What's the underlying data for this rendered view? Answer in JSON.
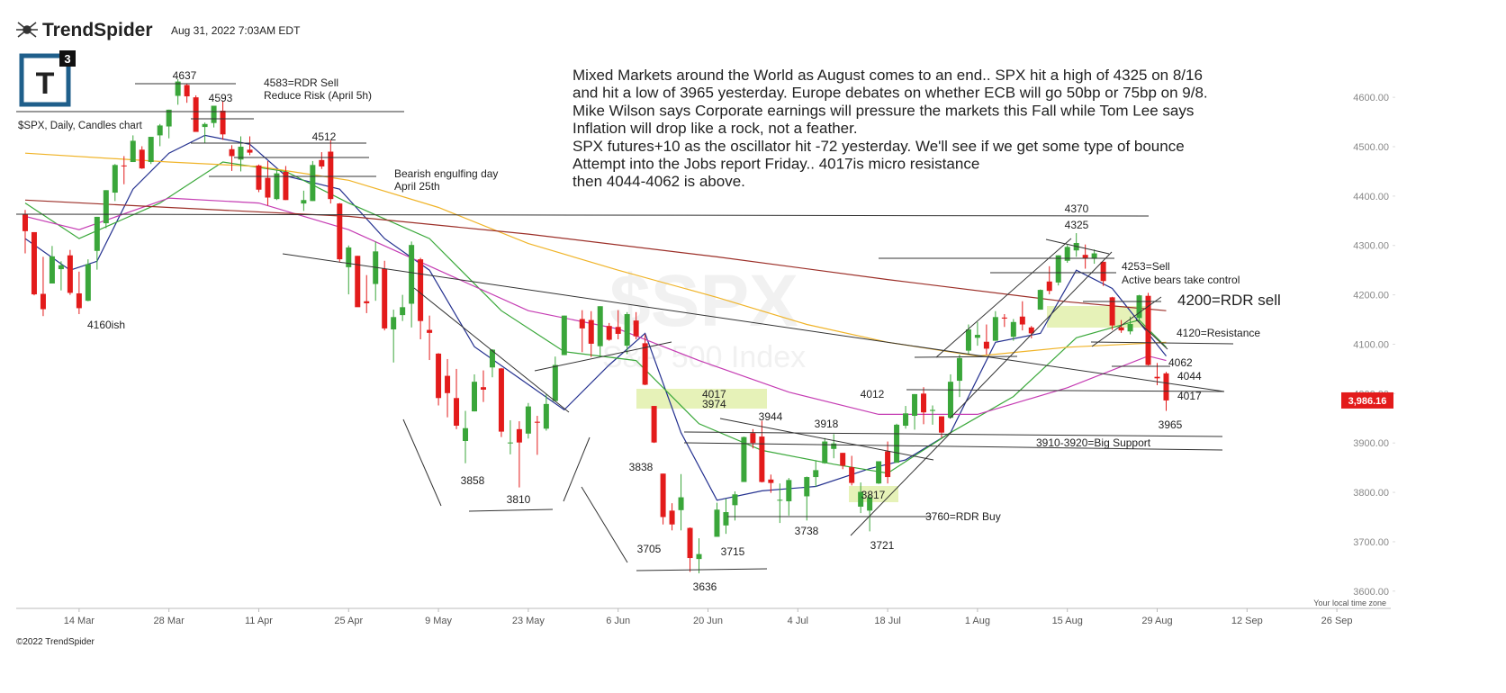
{
  "header": {
    "brand": "TrendSpider",
    "timestamp": "Aug 31, 2022 7:03AM EDT",
    "logo_letter": "T",
    "logo_digit": "3"
  },
  "footer": {
    "copyright": "©2022 TrendSpider",
    "timezone_note": "Your local time zone"
  },
  "chart_data": {
    "type": "candlestick",
    "title": "$SPX, Daily, Candles chart",
    "watermark": "$SPX",
    "watermark_subtitle": "S&P 500 Index",
    "commentary": [
      "Mixed Markets around the World as August comes to an end.. SPX hit a high of 4325 on 8/16",
      "and hit a low of 3965 yesterday. Europe debates on whether ECB will go 50bp or 75bp on 9/8.",
      "Mike Wilson says Corporate earnings will pressure the markets this Fall while Tom Lee says",
      "Inflation will drop like a rock, not a feather.",
      "SPX futures+10 as the oscillator hit -72 yesterday. We'll see if we get some type of bounce",
      "Attempt into the Jobs report Friday.. 4017is micro resistance",
      "then 4044-4062 is above."
    ],
    "annotations": [
      "4637",
      "4583=RDR Sell",
      "Reduce Risk (April 5h)",
      "4593",
      "4512",
      "Bearish engulfing day",
      "April 25th",
      "4160ish",
      "3858",
      "3810",
      "4017",
      "3974",
      "3944",
      "3918",
      "3838",
      "3705",
      "3715",
      "3636",
      "3738",
      "3817",
      "3721",
      "3760=RDR Buy",
      "4012",
      "4370",
      "4325",
      "4253=Sell",
      "Active bears take control",
      "4200=RDR sell",
      "4120=Resistance",
      "4062",
      "4044",
      "4017",
      "3965",
      "3910-3920=Big Support"
    ],
    "up_color": "#3aa63a",
    "down_color": "#e31b1b",
    "x": [
      "2022-03-04",
      "2022-03-07",
      "2022-03-08",
      "2022-03-09",
      "2022-03-10",
      "2022-03-11",
      "2022-03-14",
      "2022-03-15",
      "2022-03-16",
      "2022-03-17",
      "2022-03-18",
      "2022-03-21",
      "2022-03-22",
      "2022-03-23",
      "2022-03-24",
      "2022-03-25",
      "2022-03-28",
      "2022-03-29",
      "2022-03-30",
      "2022-03-31",
      "2022-04-01",
      "2022-04-04",
      "2022-04-05",
      "2022-04-06",
      "2022-04-07",
      "2022-04-08",
      "2022-04-11",
      "2022-04-12",
      "2022-04-13",
      "2022-04-14",
      "2022-04-18",
      "2022-04-19",
      "2022-04-20",
      "2022-04-21",
      "2022-04-22",
      "2022-04-25",
      "2022-04-26",
      "2022-04-27",
      "2022-04-28",
      "2022-04-29",
      "2022-05-02",
      "2022-05-03",
      "2022-05-04",
      "2022-05-05",
      "2022-05-06",
      "2022-05-09",
      "2022-05-10",
      "2022-05-11",
      "2022-05-12",
      "2022-05-13",
      "2022-05-16",
      "2022-05-17",
      "2022-05-18",
      "2022-05-19",
      "2022-05-20",
      "2022-05-23",
      "2022-05-24",
      "2022-05-25",
      "2022-05-26",
      "2022-05-27",
      "2022-05-31",
      "2022-06-01",
      "2022-06-02",
      "2022-06-03",
      "2022-06-06",
      "2022-06-07",
      "2022-06-08",
      "2022-06-09",
      "2022-06-10",
      "2022-06-13",
      "2022-06-14",
      "2022-06-15",
      "2022-06-16",
      "2022-06-17",
      "2022-06-21",
      "2022-06-22",
      "2022-06-23",
      "2022-06-24",
      "2022-06-27",
      "2022-06-28",
      "2022-06-29",
      "2022-06-30",
      "2022-07-01",
      "2022-07-05",
      "2022-07-06",
      "2022-07-07",
      "2022-07-08",
      "2022-07-11",
      "2022-07-12",
      "2022-07-13",
      "2022-07-14",
      "2022-07-15",
      "2022-07-18",
      "2022-07-19",
      "2022-07-20",
      "2022-07-21",
      "2022-07-22",
      "2022-07-25",
      "2022-07-26",
      "2022-07-27",
      "2022-07-28",
      "2022-07-29",
      "2022-08-01",
      "2022-08-02",
      "2022-08-03",
      "2022-08-04",
      "2022-08-05",
      "2022-08-08",
      "2022-08-09",
      "2022-08-10",
      "2022-08-11",
      "2022-08-12",
      "2022-08-15",
      "2022-08-16",
      "2022-08-17",
      "2022-08-18",
      "2022-08-19",
      "2022-08-22",
      "2022-08-23",
      "2022-08-24",
      "2022-08-25",
      "2022-08-26",
      "2022-08-29",
      "2022-08-30"
    ],
    "open": [
      4363,
      4327,
      4202,
      4223,
      4252,
      4280,
      4203,
      4188,
      4289,
      4345,
      4407,
      4462,
      4469,
      4494,
      4469,
      4523,
      4541,
      4603,
      4625,
      4600,
      4540,
      4548,
      4573,
      4495,
      4474,
      4494,
      4462,
      4437,
      4394,
      4449,
      4385,
      4390,
      4473,
      4490,
      4385,
      4256,
      4279,
      4187,
      4222,
      4253,
      4130,
      4159,
      4182,
      4272,
      4129,
      4081,
      4036,
      3991,
      3904,
      3964,
      4013,
      4053,
      4051,
      3900,
      3928,
      3919,
      3943,
      3929,
      3985,
      4078,
      4151,
      4149,
      4096,
      4137,
      4135,
      4097,
      4148,
      4102,
      3975,
      3838,
      3763,
      3764,
      3728,
      3665,
      3710,
      3733,
      3774,
      3821,
      3920,
      3913,
      3826,
      3785,
      3782,
      3792,
      3831,
      3859,
      3888,
      3880,
      3851,
      3771,
      3763,
      3818,
      3883,
      3860,
      3935,
      3955,
      4000,
      3965,
      3954,
      3951,
      4026,
      4087,
      4113,
      4105,
      4107,
      4154,
      4115,
      4156,
      4134,
      4170,
      4227,
      4225,
      4269,
      4290,
      4281,
      4273,
      4267,
      4195,
      4134,
      4126,
      4153,
      4198,
      4034,
      4041
    ],
    "high": [
      4372,
      4327,
      4277,
      4299,
      4268,
      4291,
      4247,
      4272,
      4358,
      4412,
      4465,
      4481,
      4523,
      4501,
      4520,
      4546,
      4575,
      4637,
      4627,
      4604,
      4549,
      4583,
      4593,
      4503,
      4521,
      4521,
      4464,
      4471,
      4453,
      4461,
      4411,
      4471,
      4489,
      4513,
      4386,
      4300,
      4279,
      4240,
      4308,
      4269,
      4170,
      4200,
      4308,
      4275,
      4158,
      4082,
      4070,
      4050,
      3965,
      4039,
      4047,
      4090,
      4052,
      3946,
      3944,
      3981,
      3955,
      3999,
      4075,
      4158,
      4169,
      4167,
      4177,
      4143,
      4169,
      4165,
      4165,
      4120,
      3975,
      3838,
      3778,
      3837,
      3729,
      3707,
      3779,
      3787,
      3802,
      3913,
      3928,
      3945,
      3836,
      3818,
      3829,
      3832,
      3865,
      3910,
      3918,
      3880,
      3874,
      3820,
      3796,
      3863,
      3903,
      3939,
      3975,
      3999,
      4013,
      3976,
      3954,
      4039,
      4079,
      4140,
      4145,
      4140,
      4167,
      4161,
      4151,
      4187,
      4137,
      4211,
      4258,
      4280,
      4301,
      4325,
      4302,
      4292,
      4267,
      4196,
      4149,
      4156,
      4200,
      4204,
      4062,
      4044
    ],
    "low": [
      4284,
      4199,
      4157,
      4223,
      4209,
      4200,
      4161,
      4187,
      4251,
      4335,
      4390,
      4424,
      4469,
      4455,
      4465,
      4501,
      4517,
      4585,
      4589,
      4531,
      4507,
      4539,
      4514,
      4451,
      4450,
      4483,
      4408,
      4381,
      4392,
      4392,
      4370,
      4390,
      4455,
      4385,
      4267,
      4201,
      4176,
      4163,
      4188,
      4128,
      4063,
      4147,
      4134,
      4110,
      4068,
      3976,
      3952,
      3928,
      3859,
      3964,
      3983,
      4033,
      3912,
      3877,
      3810,
      3909,
      3876,
      3925,
      3985,
      4078,
      4084,
      4074,
      4074,
      4107,
      4110,
      4080,
      4110,
      4017,
      3900,
      3735,
      3723,
      3723,
      3639,
      3636,
      3710,
      3716,
      3743,
      3821,
      3889,
      3820,
      3799,
      3738,
      3753,
      3743,
      3811,
      3858,
      3869,
      3847,
      3814,
      3758,
      3721,
      3817,
      3818,
      3860,
      3929,
      3927,
      3938,
      3937,
      3911,
      3951,
      3993,
      4079,
      4097,
      4079,
      4107,
      4135,
      4107,
      4128,
      4112,
      4170,
      4201,
      4219,
      4265,
      4277,
      4253,
      4263,
      4218,
      4129,
      4123,
      4120,
      4147,
      4057,
      4017,
      3965
    ],
    "close": [
      4329,
      4201,
      4171,
      4278,
      4260,
      4204,
      4173,
      4262,
      4358,
      4412,
      4463,
      4461,
      4512,
      4456,
      4520,
      4543,
      4575,
      4632,
      4602,
      4530,
      4546,
      4583,
      4525,
      4481,
      4500,
      4488,
      4413,
      4397,
      4446,
      4392,
      4392,
      4463,
      4460,
      4394,
      4272,
      4296,
      4175,
      4183,
      4288,
      4132,
      4155,
      4175,
      4301,
      4147,
      4123,
      3991,
      4001,
      3935,
      3930,
      4024,
      4008,
      4089,
      3923,
      3901,
      3901,
      3974,
      3941,
      3979,
      4058,
      4158,
      4132,
      4101,
      4177,
      4109,
      4121,
      4161,
      4116,
      4018,
      3901,
      3750,
      3735,
      3790,
      3667,
      3675,
      3765,
      3760,
      3796,
      3912,
      3900,
      3821,
      3819,
      3785,
      3825,
      3831,
      3845,
      3903,
      3899,
      3854,
      3819,
      3801,
      3790,
      3863,
      3831,
      3937,
      3960,
      3999,
      3962,
      3967,
      3921,
      4024,
      4072,
      4130,
      4119,
      4091,
      4155,
      4152,
      4145,
      4140,
      4122,
      4210,
      4208,
      4280,
      4297,
      4305,
      4275,
      4284,
      4228,
      4138,
      4128,
      4141,
      4199,
      4058,
      4031,
      3986.16
    ],
    "overlays": [
      {
        "color": "#23308f",
        "x": [
          "2022-03-04",
          "2022-03-11",
          "2022-03-16",
          "2022-03-22",
          "2022-03-28",
          "2022-04-01",
          "2022-04-08",
          "2022-04-14",
          "2022-04-22",
          "2022-04-29",
          "2022-05-06",
          "2022-05-13",
          "2022-05-20",
          "2022-05-27",
          "2022-06-03",
          "2022-06-09",
          "2022-06-15",
          "2022-06-21",
          "2022-06-28",
          "2022-07-06",
          "2022-07-14",
          "2022-07-20",
          "2022-07-27",
          "2022-08-03",
          "2022-08-10",
          "2022-08-16",
          "2022-08-22",
          "2022-08-30"
        ],
        "values": [
          4314,
          4250,
          4268,
          4414,
          4487,
          4523,
          4505,
          4441,
          4414,
          4314,
          4250,
          4095,
          4031,
          3967,
          4058,
          4122,
          3921,
          3784,
          3803,
          3812,
          3848,
          3866,
          3921,
          4104,
          4122,
          4250,
          4213,
          4076
        ]
      },
      {
        "color": "#3aa83a",
        "x": [
          "2022-03-04",
          "2022-03-14",
          "2022-03-25",
          "2022-04-05",
          "2022-04-14",
          "2022-04-25",
          "2022-05-06",
          "2022-05-18",
          "2022-05-27",
          "2022-06-08",
          "2022-06-17",
          "2022-06-28",
          "2022-07-08",
          "2022-07-18",
          "2022-07-27",
          "2022-08-05",
          "2022-08-16",
          "2022-08-25",
          "2022-08-30"
        ],
        "values": [
          4386,
          4314,
          4386,
          4469,
          4450,
          4386,
          4314,
          4168,
          4085,
          4067,
          3939,
          3885,
          3857,
          3839,
          3921,
          3994,
          4113,
          4149,
          4094
        ]
      },
      {
        "color": "#c53cb3",
        "x": [
          "2022-03-04",
          "2022-03-14",
          "2022-03-28",
          "2022-04-11",
          "2022-04-25",
          "2022-05-09",
          "2022-05-23",
          "2022-06-06",
          "2022-06-17",
          "2022-07-01",
          "2022-07-15",
          "2022-08-01",
          "2022-08-15",
          "2022-08-26",
          "2022-08-30"
        ],
        "values": [
          4359,
          4332,
          4396,
          4386,
          4332,
          4250,
          4168,
          4131,
          4067,
          4003,
          3958,
          3958,
          4012,
          4076,
          4067
        ]
      },
      {
        "color": "#f0b429",
        "x": [
          "2022-03-04",
          "2022-03-28",
          "2022-04-11",
          "2022-04-25",
          "2022-05-09",
          "2022-05-23",
          "2022-06-06",
          "2022-06-21",
          "2022-07-05",
          "2022-07-18",
          "2022-08-01",
          "2022-08-15",
          "2022-08-30"
        ],
        "values": [
          4487,
          4469,
          4460,
          4432,
          4377,
          4304,
          4250,
          4195,
          4140,
          4104,
          4076,
          4094,
          4104
        ]
      },
      {
        "color": "#9c2f28",
        "x": [
          "2022-03-04",
          "2022-03-28",
          "2022-04-25",
          "2022-05-23",
          "2022-06-21",
          "2022-07-18",
          "2022-08-15",
          "2022-08-30"
        ],
        "values": [
          4392,
          4377,
          4359,
          4323,
          4277,
          4231,
          4186,
          4168
        ]
      }
    ],
    "xlim": [
      "2022-03-03",
      "2022-10-04"
    ],
    "xticks": [
      {
        "value": "2022-03-14",
        "label": "14 Mar"
      },
      {
        "value": "2022-03-28",
        "label": "28 Mar"
      },
      {
        "value": "2022-04-11",
        "label": "11 Apr"
      },
      {
        "value": "2022-04-25",
        "label": "25 Apr"
      },
      {
        "value": "2022-05-09",
        "label": "9 May"
      },
      {
        "value": "2022-05-23",
        "label": "23 May"
      },
      {
        "value": "2022-06-06",
        "label": "6 Jun"
      },
      {
        "value": "2022-06-20",
        "label": "20 Jun"
      },
      {
        "value": "2022-07-04",
        "label": "4 Jul"
      },
      {
        "value": "2022-07-18",
        "label": "18 Jul"
      },
      {
        "value": "2022-08-01",
        "label": "1 Aug"
      },
      {
        "value": "2022-08-15",
        "label": "15 Aug"
      },
      {
        "value": "2022-08-29",
        "label": "29 Aug"
      },
      {
        "value": "2022-09-12",
        "label": "12 Sep"
      },
      {
        "value": "2022-09-26",
        "label": "26 Sep"
      }
    ],
    "ylim": [
      3565,
      4706
    ],
    "yticks": [
      {
        "value": 4600,
        "label": "4600.00"
      },
      {
        "value": 4500,
        "label": "4500.00"
      },
      {
        "value": 4400,
        "label": "4400.00"
      },
      {
        "value": 4300,
        "label": "4300.00"
      },
      {
        "value": 4200,
        "label": "4200.00"
      },
      {
        "value": 4100,
        "label": "4100.00"
      },
      {
        "value": 4000,
        "label": "4000.00"
      },
      {
        "value": 3900,
        "label": "3900.00"
      },
      {
        "value": 3800,
        "label": "3800.00"
      },
      {
        "value": 3700,
        "label": "3700.00"
      },
      {
        "value": 3600,
        "label": "3600.00"
      }
    ],
    "last_price": {
      "value": 3986.16,
      "label": "3,986.16"
    }
  }
}
